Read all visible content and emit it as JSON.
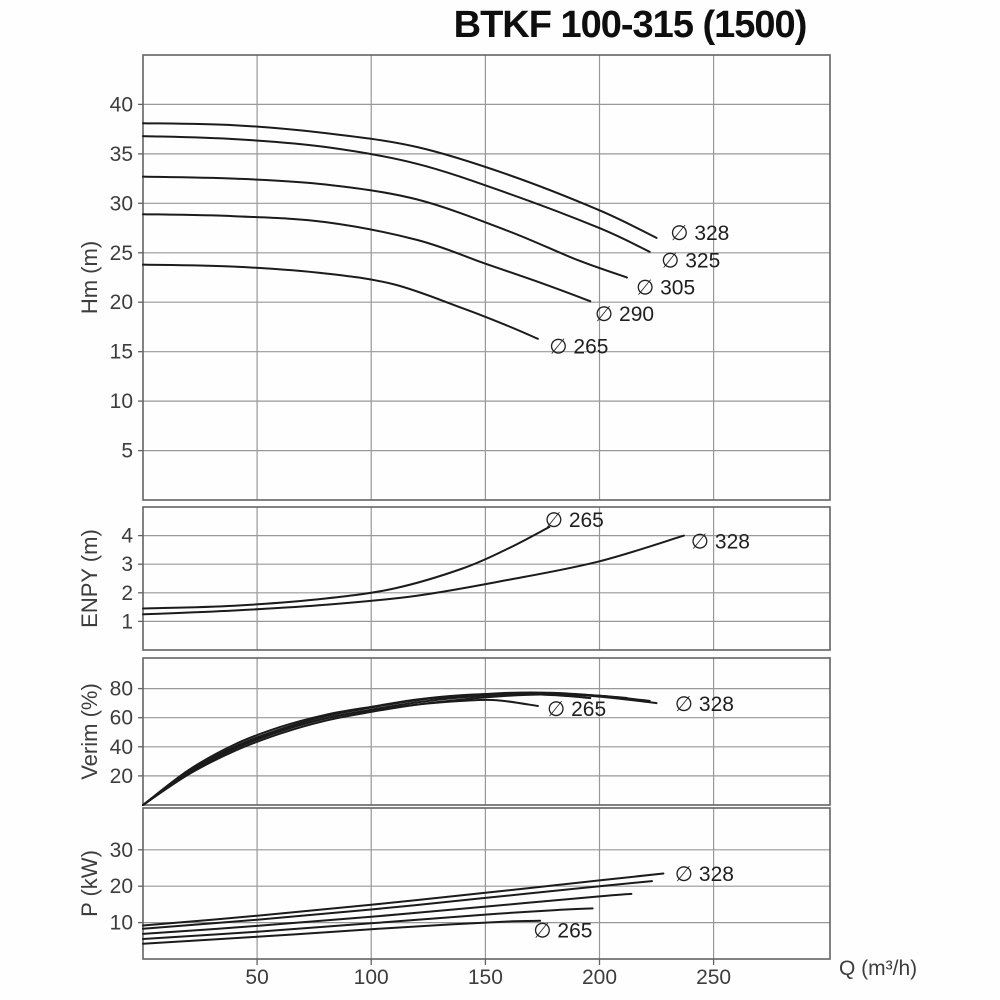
{
  "title": "BTKF 100-315 (1500)",
  "colors": {
    "curve": "#1b1b1b",
    "grid": "#989898",
    "border": "#636363",
    "tick_text": "#3d3d3d",
    "label_text": "#1f1f1f"
  },
  "x_axis": {
    "label": "Q (m³/h)",
    "range": [
      0,
      301
    ],
    "ticks": [
      50,
      100,
      150,
      200,
      250
    ]
  },
  "chart_data": [
    {
      "type": "line",
      "ylabel": "Hm (m)",
      "ylim": [
        0,
        45
      ],
      "yticks": [
        5,
        10,
        15,
        20,
        25,
        30,
        35,
        40
      ],
      "series": [
        {
          "name": "∅ 328",
          "label_xy": [
            231,
            27.0
          ],
          "points": [
            [
              0,
              38.1
            ],
            [
              40,
              37.9
            ],
            [
              80,
              37.1
            ],
            [
              120,
              35.7
            ],
            [
              160,
              32.9
            ],
            [
              200,
              29.3
            ],
            [
              225,
              26.5
            ]
          ]
        },
        {
          "name": "∅ 325",
          "label_xy": [
            227,
            24.2
          ],
          "points": [
            [
              0,
              36.8
            ],
            [
              40,
              36.5
            ],
            [
              80,
              35.7
            ],
            [
              120,
              34.0
            ],
            [
              160,
              31.0
            ],
            [
              200,
              27.5
            ],
            [
              222,
              25.1
            ]
          ]
        },
        {
          "name": "∅ 305",
          "label_xy": [
            216,
            21.5
          ],
          "points": [
            [
              0,
              32.7
            ],
            [
              40,
              32.5
            ],
            [
              80,
              31.9
            ],
            [
              120,
              30.4
            ],
            [
              160,
              27.2
            ],
            [
              190,
              24.3
            ],
            [
              212,
              22.5
            ]
          ]
        },
        {
          "name": "∅ 290",
          "label_xy": [
            198,
            18.8
          ],
          "points": [
            [
              0,
              28.9
            ],
            [
              40,
              28.7
            ],
            [
              80,
              28.1
            ],
            [
              120,
              26.3
            ],
            [
              150,
              23.9
            ],
            [
              175,
              21.9
            ],
            [
              196,
              20.1
            ]
          ]
        },
        {
          "name": "∅ 265",
          "label_xy": [
            178,
            15.5
          ],
          "points": [
            [
              0,
              23.8
            ],
            [
              40,
              23.6
            ],
            [
              80,
              22.9
            ],
            [
              110,
              21.8
            ],
            [
              140,
              19.4
            ],
            [
              160,
              17.6
            ],
            [
              173,
              16.3
            ]
          ]
        }
      ]
    },
    {
      "type": "line",
      "ylabel": "ENPY (m)",
      "ylim": [
        0,
        5
      ],
      "yticks": [
        1,
        2,
        3,
        4
      ],
      "series": [
        {
          "name": "∅ 265",
          "label_xy": [
            176,
            4.55
          ],
          "points": [
            [
              0,
              1.45
            ],
            [
              40,
              1.55
            ],
            [
              80,
              1.8
            ],
            [
              110,
              2.15
            ],
            [
              140,
              2.85
            ],
            [
              160,
              3.55
            ],
            [
              178,
              4.3
            ]
          ]
        },
        {
          "name": "∅ 328",
          "label_xy": [
            240,
            3.8
          ],
          "points": [
            [
              0,
              1.25
            ],
            [
              40,
              1.38
            ],
            [
              80,
              1.58
            ],
            [
              120,
              1.9
            ],
            [
              160,
              2.45
            ],
            [
              200,
              3.1
            ],
            [
              237,
              4.0
            ]
          ]
        }
      ]
    },
    {
      "type": "line",
      "ylabel": "Verim (%)",
      "ylim": [
        0,
        101
      ],
      "yticks": [
        20,
        40,
        60,
        80
      ],
      "series": [
        {
          "name": "∅ 328",
          "label_xy": [
            233,
            69.5
          ],
          "points": [
            [
              0,
              0
            ],
            [
              20,
              21
            ],
            [
              40,
              37
            ],
            [
              60,
              49
            ],
            [
              80,
              58
            ],
            [
              100,
              64
            ],
            [
              120,
              69
            ],
            [
              140,
              72.5
            ],
            [
              160,
              75
            ],
            [
              180,
              76
            ],
            [
              200,
              74.5
            ],
            [
              225,
              70
            ]
          ]
        },
        {
          "name": "∅ 325",
          "points": [
            [
              0,
              0
            ],
            [
              20,
              22
            ],
            [
              40,
              38.5
            ],
            [
              60,
              50.5
            ],
            [
              80,
              59.5
            ],
            [
              100,
              65.5
            ],
            [
              120,
              70.5
            ],
            [
              140,
              74
            ],
            [
              160,
              76
            ],
            [
              180,
              76.5
            ],
            [
              200,
              75
            ],
            [
              222,
              71.5
            ]
          ]
        },
        {
          "name": "∅ 305",
          "points": [
            [
              0,
              0
            ],
            [
              20,
              23
            ],
            [
              40,
              40
            ],
            [
              60,
              52
            ],
            [
              80,
              61
            ],
            [
              100,
              67
            ],
            [
              120,
              72
            ],
            [
              140,
              75
            ],
            [
              160,
              77
            ],
            [
              180,
              77
            ],
            [
              200,
              75
            ],
            [
              212,
              73.5
            ]
          ]
        },
        {
          "name": "∅ 290",
          "points": [
            [
              0,
              0
            ],
            [
              20,
              24
            ],
            [
              40,
              41.5
            ],
            [
              60,
              53.5
            ],
            [
              80,
              62
            ],
            [
              100,
              67.5
            ],
            [
              120,
              72.5
            ],
            [
              140,
              75.5
            ],
            [
              160,
              76.5
            ],
            [
              180,
              75.5
            ],
            [
              196,
              73.5
            ]
          ]
        },
        {
          "name": "∅ 265",
          "label_xy": [
            177,
            66
          ],
          "points": [
            [
              0,
              0
            ],
            [
              20,
              23
            ],
            [
              40,
              39.5
            ],
            [
              60,
              51
            ],
            [
              80,
              59.5
            ],
            [
              100,
              65
            ],
            [
              120,
              69
            ],
            [
              140,
              71.5
            ],
            [
              155,
              72
            ],
            [
              173,
              68
            ]
          ]
        }
      ]
    },
    {
      "type": "line",
      "ylabel": "P (kW)",
      "ylim": [
        0,
        41.5
      ],
      "yticks": [
        10,
        20,
        30
      ],
      "series": [
        {
          "name": "∅ 328",
          "label_xy": [
            233,
            23.4
          ],
          "points": [
            [
              0,
              9.2
            ],
            [
              50,
              11.9
            ],
            [
              100,
              14.9
            ],
            [
              150,
              18.2
            ],
            [
              200,
              21.6
            ],
            [
              228,
              23.5
            ]
          ]
        },
        {
          "name": "∅ 325",
          "points": [
            [
              0,
              8.3
            ],
            [
              50,
              10.8
            ],
            [
              100,
              13.6
            ],
            [
              150,
              16.8
            ],
            [
              200,
              20.0
            ],
            [
              223,
              21.4
            ]
          ]
        },
        {
          "name": "∅ 305",
          "points": [
            [
              0,
              6.9
            ],
            [
              50,
              9.1
            ],
            [
              100,
              11.6
            ],
            [
              150,
              14.4
            ],
            [
              200,
              17.2
            ],
            [
              214,
              17.9
            ]
          ]
        },
        {
          "name": "∅ 290",
          "points": [
            [
              0,
              5.5
            ],
            [
              50,
              7.5
            ],
            [
              100,
              9.8
            ],
            [
              150,
              12.2
            ],
            [
              180,
              13.4
            ],
            [
              197,
              13.9
            ]
          ]
        },
        {
          "name": "∅ 265",
          "label_xy": [
            171,
            7.9
          ],
          "points": [
            [
              0,
              4.2
            ],
            [
              50,
              6.1
            ],
            [
              100,
              8.2
            ],
            [
              135,
              9.5
            ],
            [
              160,
              10.3
            ],
            [
              174,
              10.5
            ]
          ]
        }
      ]
    }
  ]
}
